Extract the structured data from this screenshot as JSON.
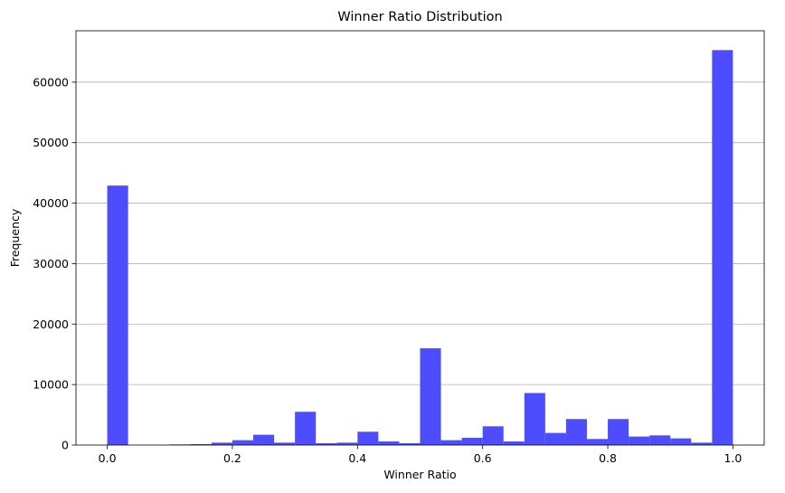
{
  "chart_data": {
    "type": "bar",
    "title": "Winner Ratio Distribution",
    "xlabel": "Winner Ratio",
    "ylabel": "Frequency",
    "xlim": [
      -0.05,
      1.05
    ],
    "ylim": [
      0,
      68500
    ],
    "grid": "y",
    "bar_color": "#4d4dff",
    "x_ticks": [
      0.0,
      0.2,
      0.4,
      0.6,
      0.8,
      1.0
    ],
    "x_tick_labels": [
      "0.0",
      "0.2",
      "0.4",
      "0.6",
      "0.8",
      "1.0"
    ],
    "y_ticks": [
      0,
      10000,
      20000,
      30000,
      40000,
      50000,
      60000
    ],
    "y_tick_labels": [
      "0",
      "10000",
      "20000",
      "30000",
      "40000",
      "50000",
      "60000"
    ],
    "bin_width": 0.03333,
    "bins": [
      {
        "x0": 0.0,
        "count": 42900
      },
      {
        "x0": 0.03333,
        "count": 0
      },
      {
        "x0": 0.06667,
        "count": 0
      },
      {
        "x0": 0.1,
        "count": 100
      },
      {
        "x0": 0.13333,
        "count": 150
      },
      {
        "x0": 0.16667,
        "count": 400
      },
      {
        "x0": 0.2,
        "count": 800
      },
      {
        "x0": 0.23333,
        "count": 1700
      },
      {
        "x0": 0.26667,
        "count": 400
      },
      {
        "x0": 0.3,
        "count": 5500
      },
      {
        "x0": 0.33333,
        "count": 300
      },
      {
        "x0": 0.36667,
        "count": 400
      },
      {
        "x0": 0.4,
        "count": 2200
      },
      {
        "x0": 0.43333,
        "count": 600
      },
      {
        "x0": 0.46667,
        "count": 300
      },
      {
        "x0": 0.5,
        "count": 16000
      },
      {
        "x0": 0.53333,
        "count": 800
      },
      {
        "x0": 0.56667,
        "count": 1200
      },
      {
        "x0": 0.6,
        "count": 3100
      },
      {
        "x0": 0.63333,
        "count": 600
      },
      {
        "x0": 0.66667,
        "count": 8600
      },
      {
        "x0": 0.7,
        "count": 2000
      },
      {
        "x0": 0.73333,
        "count": 4300
      },
      {
        "x0": 0.76667,
        "count": 1000
      },
      {
        "x0": 0.8,
        "count": 4300
      },
      {
        "x0": 0.83333,
        "count": 1400
      },
      {
        "x0": 0.86667,
        "count": 1600
      },
      {
        "x0": 0.9,
        "count": 1100
      },
      {
        "x0": 0.93333,
        "count": 400
      },
      {
        "x0": 0.96667,
        "count": 65300
      }
    ]
  }
}
